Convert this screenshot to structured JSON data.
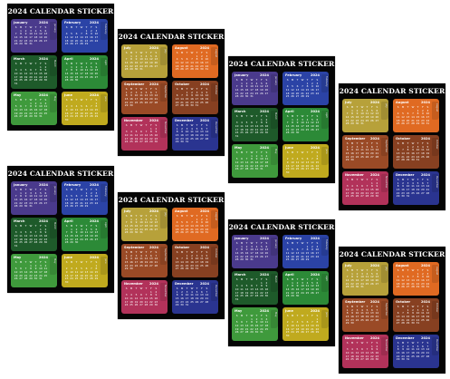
{
  "sticker_title": "2024 CALENDAR STICKER",
  "year": "2024",
  "weekdays": [
    "S",
    "M",
    "T",
    "W",
    "T",
    "F",
    "S"
  ],
  "months": [
    {
      "name": "January",
      "color": "#4a3a8c"
    },
    {
      "name": "February",
      "color": "#2b43a6"
    },
    {
      "name": "March",
      "color": "#1e5a2a"
    },
    {
      "name": "April",
      "color": "#2c8a37"
    },
    {
      "name": "May",
      "color": "#3f9a3c"
    },
    {
      "name": "June",
      "color": "#c0aa1e"
    },
    {
      "name": "July",
      "color": "#b7a13a"
    },
    {
      "name": "August",
      "color": "#e06a22"
    },
    {
      "name": "September",
      "color": "#9a4a26"
    },
    {
      "name": "October",
      "color": "#874021"
    },
    {
      "name": "November",
      "color": "#b2325a"
    },
    {
      "name": "December",
      "color": "#2a3490"
    }
  ],
  "sheets": [
    {
      "id": "sheet-1",
      "half": "first"
    },
    {
      "id": "sheet-2",
      "half": "second"
    },
    {
      "id": "sheet-3",
      "half": "first"
    },
    {
      "id": "sheet-4",
      "half": "second"
    },
    {
      "id": "sheet-5",
      "half": "first"
    },
    {
      "id": "sheet-6",
      "half": "second"
    },
    {
      "id": "sheet-7",
      "half": "first"
    },
    {
      "id": "sheet-8",
      "half": "second"
    }
  ]
}
